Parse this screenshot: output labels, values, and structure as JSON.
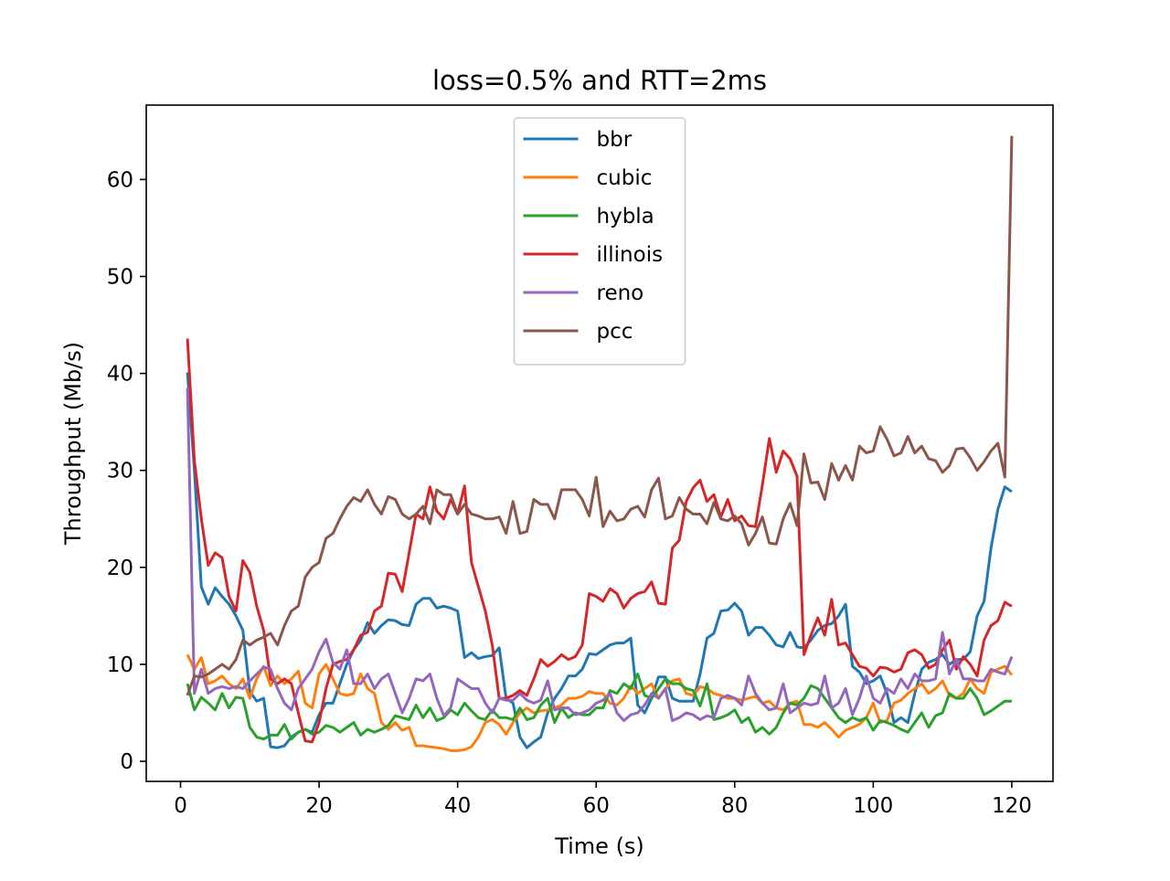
{
  "chart_data": {
    "type": "line",
    "title": "loss=0.5% and RTT=2ms",
    "x_label": "Time (s)",
    "y_label": "Throughput (Mb/s)",
    "x": [
      1,
      2,
      3,
      4,
      5,
      6,
      7,
      8,
      9,
      10,
      11,
      12,
      13,
      14,
      15,
      16,
      17,
      18,
      19,
      20,
      21,
      22,
      23,
      24,
      25,
      26,
      27,
      28,
      29,
      30,
      31,
      32,
      33,
      34,
      35,
      36,
      37,
      38,
      39,
      40,
      41,
      42,
      43,
      44,
      45,
      46,
      47,
      48,
      49,
      50,
      51,
      52,
      53,
      54,
      55,
      56,
      57,
      58,
      59,
      60,
      61,
      62,
      63,
      64,
      65,
      66,
      67,
      68,
      69,
      70,
      71,
      72,
      73,
      74,
      75,
      76,
      77,
      78,
      79,
      80,
      81,
      82,
      83,
      84,
      85,
      86,
      87,
      88,
      89,
      90,
      91,
      92,
      93,
      94,
      95,
      96,
      97,
      98,
      99,
      100,
      101,
      102,
      103,
      104,
      105,
      106,
      107,
      108,
      109,
      110,
      111,
      112,
      113,
      114,
      115,
      116,
      117,
      118,
      119,
      120
    ],
    "series": [
      {
        "name": "bbr",
        "color": "#1f77b4",
        "values": [
          40.1,
          30,
          18,
          16.2,
          17.9,
          17,
          16.2,
          15,
          13.5,
          7.2,
          6.2,
          6.5,
          1.5,
          1.4,
          1.6,
          2.5,
          3,
          3.3,
          3,
          4.8,
          6,
          6,
          8,
          10,
          11.5,
          12.5,
          14.3,
          13.2,
          14,
          14.6,
          14.5,
          14.1,
          14,
          16.2,
          16.8,
          16.8,
          15.8,
          16,
          15.8,
          15.5,
          10.7,
          11.2,
          10.6,
          10.8,
          10.9,
          11.7,
          6.5,
          6,
          2.5,
          1.4,
          2,
          2.5,
          5,
          6.5,
          7.5,
          8.8,
          8.8,
          9.5,
          11.1,
          11,
          11.5,
          12,
          12.2,
          12.2,
          12.7,
          5.8,
          5,
          6.5,
          8.7,
          8.7,
          6.5,
          6.2,
          6.2,
          6.2,
          9,
          12.7,
          13.2,
          15.5,
          15.6,
          16.3,
          15.5,
          13,
          13.8,
          13.8,
          13,
          12,
          11.8,
          13.3,
          11.8,
          11.7,
          12.5,
          13.5,
          14,
          14.2,
          15,
          16.2,
          9.8,
          9.2,
          8,
          8.3,
          8.8,
          7,
          4,
          4.5,
          4,
          7,
          9.5,
          10.2,
          10.5,
          11,
          10,
          10.5,
          10.5,
          11.3,
          15,
          16.5,
          22,
          26,
          28.3,
          27.8
        ]
      },
      {
        "name": "cubic",
        "color": "#ff7f0e",
        "values": [
          11,
          9.5,
          10.7,
          8,
          8.3,
          8.8,
          8,
          7.5,
          8.5,
          6.5,
          8.5,
          9.8,
          7.8,
          8.8,
          8,
          8.5,
          9.3,
          6,
          5.5,
          9,
          10,
          8.5,
          7,
          6.8,
          7,
          9,
          7.5,
          7,
          4,
          3.3,
          4,
          3.2,
          3.5,
          1.6,
          1.6,
          1.5,
          1.4,
          1.3,
          1.1,
          1.1,
          1.2,
          1.5,
          2.5,
          4,
          4.3,
          3.8,
          2.8,
          4,
          5,
          5.5,
          5,
          5.2,
          5.3,
          5.5,
          5.8,
          6.5,
          6.5,
          6.7,
          7.2,
          7,
          7,
          6,
          5.8,
          6.5,
          7.8,
          7,
          7.5,
          8,
          6.5,
          7.5,
          8.3,
          8.5,
          7,
          6.8,
          7.7,
          7.5,
          7,
          6.8,
          6.5,
          6.5,
          6.3,
          6.5,
          6.7,
          6,
          6.2,
          5.5,
          5.3,
          6,
          6.2,
          3.8,
          3.8,
          3.5,
          4,
          3.3,
          2.5,
          3.2,
          3.5,
          3.8,
          4.5,
          6,
          4,
          4.2,
          6,
          6.3,
          7,
          7.5,
          8,
          7,
          7.5,
          8.3,
          6.8,
          6.5,
          7,
          8.5,
          7.5,
          7,
          9.2,
          9.5,
          9.8,
          8.9
        ]
      },
      {
        "name": "hybla",
        "color": "#2ca02c",
        "values": [
          8,
          5.3,
          6.6,
          6,
          5.3,
          7,
          5.5,
          6.6,
          6.5,
          3.5,
          2.5,
          2.3,
          2.7,
          2.7,
          3.8,
          2.3,
          3,
          3.3,
          2.8,
          3,
          3.7,
          3.5,
          3,
          3.5,
          4,
          2.7,
          3.3,
          3,
          3.3,
          3.7,
          4.7,
          4.5,
          4.3,
          5.8,
          4.5,
          5.5,
          4.2,
          4.5,
          5.3,
          4.8,
          6,
          5.2,
          4.5,
          4.3,
          5.3,
          4.5,
          4.5,
          4.3,
          5.5,
          4.3,
          4.5,
          5.8,
          6.5,
          4,
          5.5,
          4.5,
          5,
          4.8,
          4.8,
          5.5,
          5.5,
          7.3,
          7,
          8,
          7.5,
          9,
          6.8,
          6.5,
          7.5,
          8.5,
          8,
          8,
          7.5,
          7.3,
          5.7,
          8,
          4.3,
          4.5,
          4.8,
          5.3,
          4,
          4.5,
          3,
          3.5,
          2.8,
          3.5,
          5,
          6,
          5.8,
          6.5,
          7.8,
          7.5,
          6.5,
          5.5,
          4.5,
          4,
          4.5,
          4.2,
          4.5,
          3.2,
          4.2,
          4,
          3.7,
          3.3,
          3,
          4,
          5,
          3.5,
          4.7,
          5,
          7,
          6.5,
          6.5,
          7.5,
          6.5,
          4.8,
          5.2,
          5.7,
          6.2,
          6.2
        ]
      },
      {
        "name": "illinois",
        "color": "#d62728",
        "values": [
          43.6,
          31,
          25,
          20.2,
          21.5,
          21,
          17,
          15.5,
          20.7,
          19.5,
          16,
          13.5,
          8.5,
          8,
          8.5,
          8,
          5,
          2.1,
          2,
          4,
          7.5,
          10,
          10.3,
          10.5,
          11.5,
          13,
          13.3,
          15.5,
          16,
          19.4,
          19.3,
          17.5,
          21.5,
          25.5,
          25,
          28.3,
          25.8,
          25,
          27,
          25.5,
          28.4,
          20.5,
          18,
          15.5,
          12,
          6.5,
          6.5,
          6.8,
          7.3,
          6.8,
          8.5,
          10.5,
          9.8,
          10.3,
          11,
          10.5,
          10.8,
          12,
          17.3,
          17,
          16.5,
          17.8,
          17.3,
          15.8,
          16.8,
          17.3,
          17.5,
          18.5,
          16.3,
          16.2,
          22,
          22.8,
          26.8,
          28.2,
          29,
          26.8,
          27.5,
          25.2,
          27,
          24.8,
          25.3,
          24.3,
          24.2,
          28.5,
          33.3,
          29.8,
          32,
          31.2,
          29.4,
          11,
          13,
          14.8,
          13,
          16.7,
          12,
          12.2,
          11,
          9.8,
          9.6,
          8.8,
          9.7,
          9.6,
          9.2,
          9.5,
          11.2,
          11.5,
          11,
          9.6,
          10,
          11.5,
          12.5,
          9.5,
          10.8,
          10,
          8.8,
          12.5,
          14,
          14.5,
          16.4,
          16
        ]
      },
      {
        "name": "reno",
        "color": "#9467bd",
        "values": [
          38.5,
          7,
          9.5,
          7,
          7.5,
          7.7,
          7.5,
          7.7,
          7.5,
          8.3,
          9,
          9.7,
          9.5,
          7.5,
          6,
          5.3,
          7.5,
          8.5,
          9.5,
          11.3,
          12.6,
          10.2,
          9.5,
          11.5,
          8,
          8,
          9,
          7.5,
          8.5,
          9,
          7,
          5,
          6.5,
          8.5,
          8.3,
          9,
          6.5,
          4.7,
          5.5,
          8.5,
          8,
          7.5,
          7.5,
          6,
          5,
          6.5,
          6.3,
          6.3,
          7,
          6.3,
          6,
          6.3,
          8.3,
          5.3,
          5.5,
          5.5,
          4.8,
          5,
          5.3,
          6,
          6.3,
          7,
          5,
          4.2,
          4.8,
          5,
          5.8,
          7,
          6.5,
          7.5,
          4.2,
          4.5,
          5,
          4.8,
          4.3,
          4.7,
          4.5,
          6.5,
          6.8,
          6.5,
          5.8,
          8.8,
          7,
          6,
          5.3,
          5.5,
          8,
          5,
          5.5,
          6,
          5.8,
          6,
          8.8,
          5.5,
          6,
          7.5,
          4.8,
          6.5,
          8.8,
          6.5,
          6,
          7.5,
          7,
          8.5,
          7.5,
          9,
          8.3,
          8.3,
          8.5,
          13.3,
          9,
          10.5,
          8.5,
          8.5,
          8.3,
          8.3,
          9.5,
          9.2,
          9,
          10.8
        ]
      },
      {
        "name": "pcc",
        "color": "#8c564b",
        "values": [
          6.8,
          8.8,
          8.7,
          9,
          9.5,
          10,
          9.5,
          10.5,
          12.5,
          12,
          12.5,
          12.8,
          13.2,
          12,
          14,
          15.5,
          16,
          19,
          20,
          20.5,
          23,
          23.5,
          25,
          26.3,
          27.2,
          26.8,
          28,
          26.5,
          25.5,
          27.3,
          27,
          25.5,
          25,
          25.5,
          26.3,
          24.5,
          28,
          27.5,
          27.5,
          25.5,
          26.5,
          25.5,
          25.3,
          25,
          25,
          25.2,
          23.5,
          26.8,
          23.5,
          23.7,
          27,
          26.5,
          26.5,
          25,
          28,
          28,
          28,
          27,
          25.3,
          29.3,
          24.2,
          25.8,
          24.8,
          25,
          26,
          26.3,
          25.2,
          28,
          29.2,
          25,
          25.3,
          27.2,
          26,
          25.5,
          25.5,
          24.5,
          26.7,
          25,
          24.8,
          25.3,
          24.5,
          22.3,
          23.5,
          25.2,
          22.5,
          22.4,
          25,
          26.6,
          24.3,
          31.7,
          28.7,
          28.8,
          27,
          30.7,
          29,
          30.5,
          29,
          32.5,
          31.8,
          32,
          34.5,
          33.2,
          31.5,
          31.8,
          33.5,
          31.8,
          32.5,
          31.2,
          31,
          29.8,
          30.5,
          32.2,
          32.3,
          31.3,
          30,
          30.9,
          32,
          32.8,
          29.3,
          64.5
        ]
      }
    ],
    "xlim": [
      -4.95,
      125.95
    ],
    "xticks": [
      0,
      20,
      40,
      60,
      80,
      100,
      120
    ],
    "ylim": [
      -2.07,
      67.67
    ],
    "yticks": [
      0,
      10,
      20,
      30,
      40,
      50,
      60
    ],
    "legend": "upper center"
  }
}
